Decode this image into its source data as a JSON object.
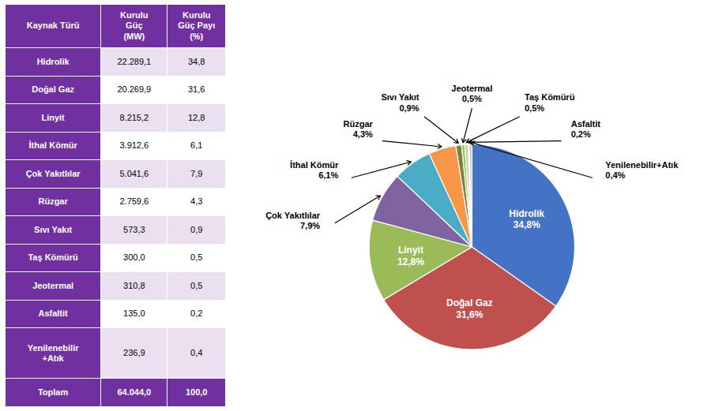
{
  "chart_data": [
    {
      "type": "table",
      "columns": [
        "Kaynak Türü",
        "Kurulu\nGüç\n(MW)",
        "Kurulu\nGüç Payı\n(%)"
      ],
      "rows": [
        [
          "Hidrolik",
          "22.289,1",
          "34,8"
        ],
        [
          "Doğal Gaz",
          "20.269,9",
          "31,6"
        ],
        [
          "Linyit",
          "8.215,2",
          "12,8"
        ],
        [
          "İthal Kömür",
          "3.912,6",
          "6,1"
        ],
        [
          "Çok Yakıtlılar",
          "5.041,6",
          "7,9"
        ],
        [
          "Rüzgar",
          "2.759,6",
          "4,3"
        ],
        [
          "Sıvı Yakıt",
          "573,3",
          "0,9"
        ],
        [
          "Taş Kömürü",
          "300,0",
          "0,5"
        ],
        [
          "Jeotermal",
          "310,8",
          "0,5"
        ],
        [
          "Asfaltit",
          "135,0",
          "0,2"
        ],
        [
          "Yenilenebilir\n+Atık",
          "236,9",
          "0,4"
        ],
        [
          "Toplam",
          "64.044,0",
          "100,0"
        ]
      ],
      "color": "#7030A0",
      "colors": [
        "#EAE0F0",
        "#FFFFFF",
        "#EAE0F0",
        "#FFFFFF",
        "#EAE0F0",
        "#FFFFFF",
        "#EAE0F0",
        "#FFFFFF",
        "#EAE0F0",
        "#FFFFFF",
        "#EAE0F0",
        "#7030A0"
      ]
    },
    {
      "type": "pie",
      "categories": [
        "Hidrolik",
        "Doğal Gaz",
        "Linyit",
        "Çok Yakıtlılar",
        "İthal Kömür",
        "Rüzgar",
        "Sıvı Yakıt",
        "Jeotermal",
        "Taş Kömürü",
        "Asfaltit",
        "Yenilenebilir+Atık"
      ],
      "values": [
        34.8,
        31.6,
        12.8,
        7.9,
        6.1,
        4.3,
        0.9,
        0.5,
        0.5,
        0.2,
        0.4
      ],
      "value_labels": [
        "34,8%",
        "31,6%",
        "12,8%",
        "7,9%",
        "6,1%",
        "4,3%",
        "0,9%",
        "0,5%",
        "0,5%",
        "0,2%",
        "0,4%"
      ],
      "colors": [
        "#4472C4",
        "#C0504D",
        "#9BBB59",
        "#8064A2",
        "#4BACC6",
        "#F79646",
        "#808040",
        "#92D050",
        "#D0C8B8",
        "#C0A0C0",
        "#B8C8A0"
      ],
      "data_labels": true
    }
  ]
}
